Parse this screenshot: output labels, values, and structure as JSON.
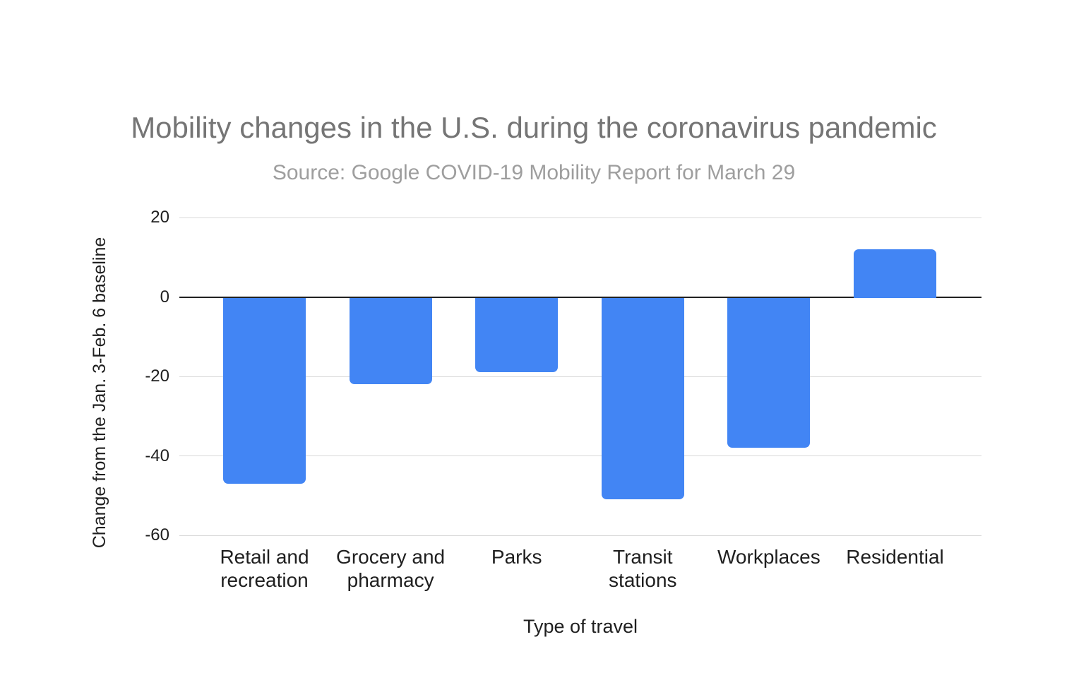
{
  "chart_data": {
    "type": "bar",
    "title": "Mobility changes in the U.S. during the coronavirus pandemic",
    "subtitle": "Source: Google COVID-19 Mobility Report for March 29",
    "xlabel": "Type of travel",
    "ylabel": "Change from the Jan. 3-Feb. 6 baseline",
    "categories": [
      "Retail and recreation",
      "Grocery and pharmacy",
      "Parks",
      "Transit stations",
      "Workplaces",
      "Residential"
    ],
    "values": [
      -47,
      -22,
      -19,
      -51,
      -38,
      12
    ],
    "yticks": [
      20,
      0,
      -20,
      -40,
      -60
    ],
    "ylim": [
      -60,
      20
    ],
    "grid": true,
    "legend": "none",
    "bar_color": "#4285f4",
    "colors": {
      "title": "#757575",
      "subtitle": "#9e9e9e",
      "axis_text": "#1f1f1f",
      "gridline": "#d9d9d9",
      "zero_line": "#212121",
      "background": "#ffffff"
    }
  }
}
